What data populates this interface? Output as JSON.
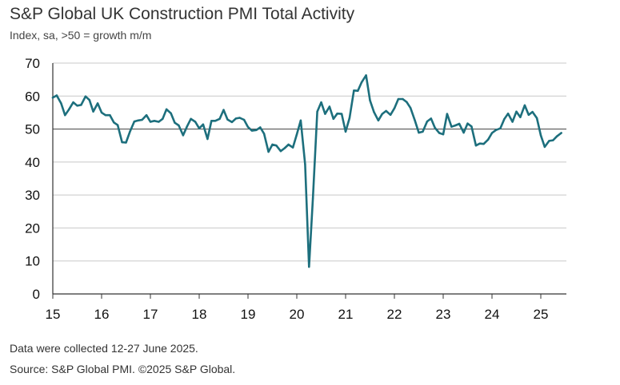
{
  "title": "S&P Global UK Construction PMI Total Activity",
  "subtitle": "Index, sa, >50 = growth m/m",
  "notes": {
    "collected": "Data were collected 12-27 June 2025.",
    "source": "Source: S&P Global PMI. ©2025 S&P Global."
  },
  "colors": {
    "line": "#1d6f7d",
    "grid": "#c8c8c8",
    "axis": "#333333"
  },
  "chart_data": {
    "type": "line",
    "title": "S&P Global UK Construction PMI Total Activity",
    "subtitle": "Index, sa, >50 = growth m/m",
    "xlabel": "",
    "ylabel": "",
    "ylim": [
      0,
      70
    ],
    "yticks": [
      "0",
      "10",
      "20",
      "30",
      "40",
      "50",
      "60",
      "70"
    ],
    "xlim": [
      2015.0,
      2025.6
    ],
    "xticks": [
      "15",
      "16",
      "17",
      "18",
      "19",
      "20",
      "21",
      "22",
      "23",
      "24",
      "25"
    ],
    "grid": "horizontal",
    "series": [
      {
        "points": [
          [
            2015.0,
            59.5
          ],
          [
            2015.08,
            60.2
          ],
          [
            2015.17,
            57.8
          ],
          [
            2015.25,
            54.2
          ],
          [
            2015.33,
            55.9
          ],
          [
            2015.42,
            58.1
          ],
          [
            2015.5,
            57.1
          ],
          [
            2015.58,
            57.3
          ],
          [
            2015.67,
            59.9
          ],
          [
            2015.75,
            58.8
          ],
          [
            2015.83,
            55.3
          ],
          [
            2015.92,
            57.8
          ],
          [
            2016.0,
            55.0
          ],
          [
            2016.08,
            54.2
          ],
          [
            2016.17,
            54.2
          ],
          [
            2016.25,
            52.0
          ],
          [
            2016.33,
            51.2
          ],
          [
            2016.42,
            46.0
          ],
          [
            2016.5,
            45.9
          ],
          [
            2016.58,
            49.2
          ],
          [
            2016.67,
            52.3
          ],
          [
            2016.75,
            52.6
          ],
          [
            2016.83,
            52.8
          ],
          [
            2016.92,
            54.2
          ],
          [
            2017.0,
            52.2
          ],
          [
            2017.08,
            52.5
          ],
          [
            2017.17,
            52.2
          ],
          [
            2017.25,
            53.1
          ],
          [
            2017.33,
            56.0
          ],
          [
            2017.42,
            54.8
          ],
          [
            2017.5,
            51.9
          ],
          [
            2017.58,
            51.1
          ],
          [
            2017.67,
            48.1
          ],
          [
            2017.75,
            50.8
          ],
          [
            2017.83,
            53.1
          ],
          [
            2017.92,
            52.2
          ],
          [
            2018.0,
            50.2
          ],
          [
            2018.08,
            51.4
          ],
          [
            2018.17,
            47.0
          ],
          [
            2018.25,
            52.5
          ],
          [
            2018.33,
            52.5
          ],
          [
            2018.42,
            53.1
          ],
          [
            2018.5,
            55.8
          ],
          [
            2018.58,
            52.9
          ],
          [
            2018.67,
            52.1
          ],
          [
            2018.75,
            53.2
          ],
          [
            2018.83,
            53.4
          ],
          [
            2018.92,
            52.8
          ],
          [
            2019.0,
            50.6
          ],
          [
            2019.08,
            49.5
          ],
          [
            2019.17,
            49.7
          ],
          [
            2019.25,
            50.5
          ],
          [
            2019.33,
            48.6
          ],
          [
            2019.42,
            43.1
          ],
          [
            2019.5,
            45.3
          ],
          [
            2019.58,
            45.0
          ],
          [
            2019.67,
            43.3
          ],
          [
            2019.75,
            44.2
          ],
          [
            2019.83,
            45.3
          ],
          [
            2019.92,
            44.4
          ],
          [
            2020.0,
            48.4
          ],
          [
            2020.08,
            52.6
          ],
          [
            2020.17,
            39.3
          ],
          [
            2020.25,
            8.2
          ],
          [
            2020.33,
            28.9
          ],
          [
            2020.42,
            55.3
          ],
          [
            2020.5,
            58.1
          ],
          [
            2020.58,
            54.6
          ],
          [
            2020.67,
            56.8
          ],
          [
            2020.75,
            53.1
          ],
          [
            2020.83,
            54.7
          ],
          [
            2020.92,
            54.6
          ],
          [
            2021.0,
            49.2
          ],
          [
            2021.08,
            53.3
          ],
          [
            2021.17,
            61.7
          ],
          [
            2021.25,
            61.6
          ],
          [
            2021.33,
            64.2
          ],
          [
            2021.42,
            66.3
          ],
          [
            2021.5,
            58.7
          ],
          [
            2021.58,
            55.2
          ],
          [
            2021.67,
            52.6
          ],
          [
            2021.75,
            54.6
          ],
          [
            2021.83,
            55.5
          ],
          [
            2021.92,
            54.3
          ],
          [
            2022.0,
            56.3
          ],
          [
            2022.08,
            59.1
          ],
          [
            2022.17,
            59.1
          ],
          [
            2022.25,
            58.2
          ],
          [
            2022.33,
            56.4
          ],
          [
            2022.42,
            52.6
          ],
          [
            2022.5,
            48.9
          ],
          [
            2022.58,
            49.2
          ],
          [
            2022.67,
            52.3
          ],
          [
            2022.75,
            53.2
          ],
          [
            2022.83,
            50.4
          ],
          [
            2022.92,
            48.8
          ],
          [
            2023.0,
            48.4
          ],
          [
            2023.08,
            54.6
          ],
          [
            2023.17,
            50.7
          ],
          [
            2023.25,
            51.1
          ],
          [
            2023.33,
            51.6
          ],
          [
            2023.42,
            48.9
          ],
          [
            2023.5,
            51.7
          ],
          [
            2023.58,
            50.8
          ],
          [
            2023.67,
            45.0
          ],
          [
            2023.75,
            45.6
          ],
          [
            2023.83,
            45.5
          ],
          [
            2023.92,
            46.8
          ],
          [
            2024.0,
            48.8
          ],
          [
            2024.08,
            49.7
          ],
          [
            2024.17,
            50.2
          ],
          [
            2024.25,
            53.0
          ],
          [
            2024.33,
            54.7
          ],
          [
            2024.42,
            52.2
          ],
          [
            2024.5,
            55.3
          ],
          [
            2024.58,
            53.6
          ],
          [
            2024.67,
            57.2
          ],
          [
            2024.75,
            54.3
          ],
          [
            2024.83,
            55.2
          ],
          [
            2024.92,
            53.3
          ],
          [
            2025.0,
            48.1
          ],
          [
            2025.08,
            44.6
          ],
          [
            2025.17,
            46.4
          ],
          [
            2025.25,
            46.6
          ],
          [
            2025.33,
            47.8
          ],
          [
            2025.42,
            48.8
          ]
        ]
      }
    ]
  }
}
